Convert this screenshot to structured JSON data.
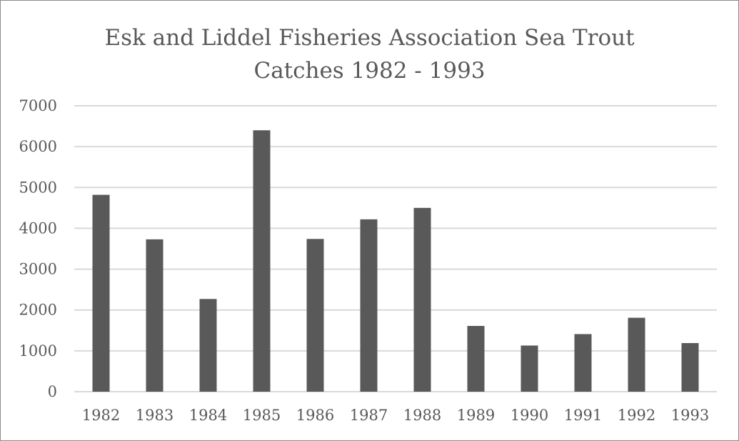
{
  "chart_data": {
    "type": "bar",
    "title_lines": [
      "Esk and Liddel Fisheries Association Sea Trout",
      "Catches 1982 - 1993"
    ],
    "categories": [
      "1982",
      "1983",
      "1984",
      "1985",
      "1986",
      "1987",
      "1988",
      "1989",
      "1990",
      "1991",
      "1992",
      "1993"
    ],
    "values": [
      4820,
      3730,
      2270,
      6400,
      3740,
      4220,
      4500,
      1610,
      1130,
      1410,
      1810,
      1190
    ],
    "yticks": [
      "0",
      "1000",
      "2000",
      "3000",
      "4000",
      "5000",
      "6000",
      "7000"
    ],
    "ylim": [
      0,
      7000
    ],
    "grid": true,
    "legend": "none",
    "bar_color": "#595959",
    "grid_color": "#d9d9d9"
  }
}
